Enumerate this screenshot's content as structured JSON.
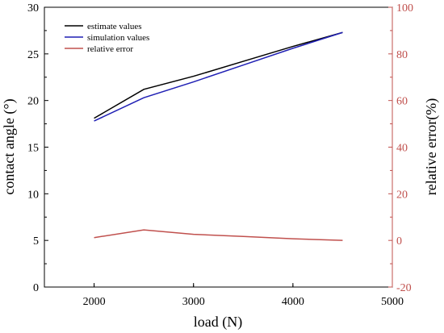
{
  "chart_data": {
    "type": "line",
    "x": [
      2000,
      2500,
      3000,
      3500,
      4000,
      4500
    ],
    "xlabel": "load (N)",
    "ylabel": "contact angle (°)",
    "y2label": "relative error(%)",
    "xlim": [
      1500,
      5000
    ],
    "ylim": [
      0,
      30
    ],
    "y2lim": [
      -20,
      100
    ],
    "xticks": [
      2000,
      3000,
      4000,
      5000
    ],
    "yticks": [
      0,
      5,
      10,
      15,
      20,
      25,
      30
    ],
    "y2ticks": [
      -20,
      0,
      20,
      40,
      60,
      80,
      100
    ],
    "grid": false,
    "legend_position": "top-left",
    "series": [
      {
        "name": "estimate values",
        "axis": "left",
        "color": "#000000",
        "values": [
          18.1,
          21.2,
          22.6,
          24.2,
          25.8,
          27.3
        ]
      },
      {
        "name": "simulation values",
        "axis": "left",
        "color": "#1f1fb4",
        "values": [
          17.8,
          20.3,
          22.0,
          23.8,
          25.6,
          27.3
        ]
      },
      {
        "name": "relative error",
        "axis": "right",
        "color": "#c0504d",
        "values": [
          1.2,
          4.5,
          2.6,
          1.7,
          0.7,
          0.0
        ]
      }
    ],
    "colors": {
      "right_axis": "#c0504d"
    }
  }
}
